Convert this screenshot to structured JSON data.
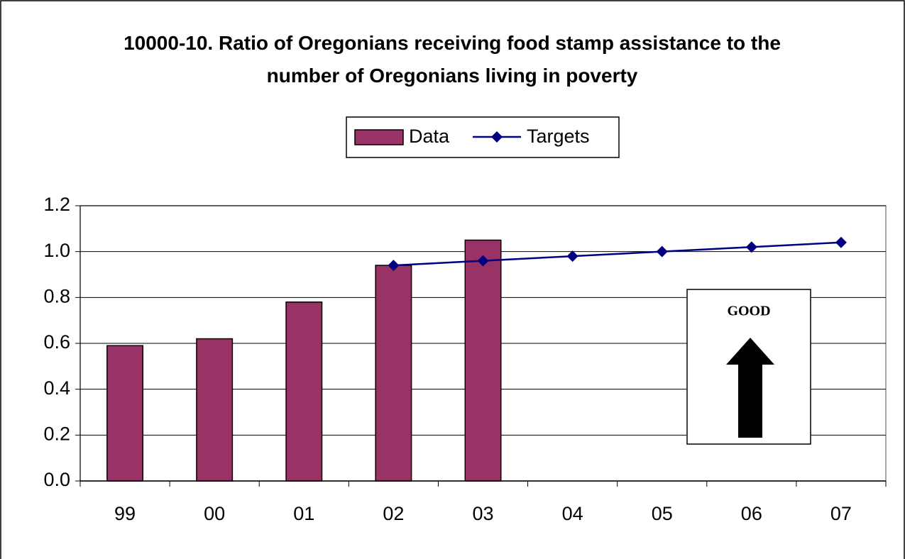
{
  "chart_data": {
    "type": "bar",
    "title": "10000-10. Ratio of Oregonians receiving food stamp assistance to the number of Oregonians living in poverty",
    "categories": [
      "99",
      "00",
      "01",
      "02",
      "03",
      "04",
      "05",
      "06",
      "07"
    ],
    "series": [
      {
        "name": "Data",
        "type": "bar",
        "color": "#993366",
        "values": [
          0.59,
          0.62,
          0.78,
          0.94,
          1.05,
          null,
          null,
          null,
          null
        ]
      },
      {
        "name": "Targets",
        "type": "line",
        "color": "#000080",
        "values": [
          null,
          null,
          null,
          0.94,
          0.96,
          0.98,
          1.0,
          1.02,
          1.04
        ]
      }
    ],
    "ylim": [
      0,
      1.2
    ],
    "yticks": [
      {
        "value": 0,
        "label": "0.0"
      },
      0.2,
      0.4,
      0.6,
      0.8,
      {
        "value": 1,
        "label": "1.0"
      },
      1.2
    ],
    "grid": true,
    "legend": "top",
    "annotation": "GOOD"
  }
}
